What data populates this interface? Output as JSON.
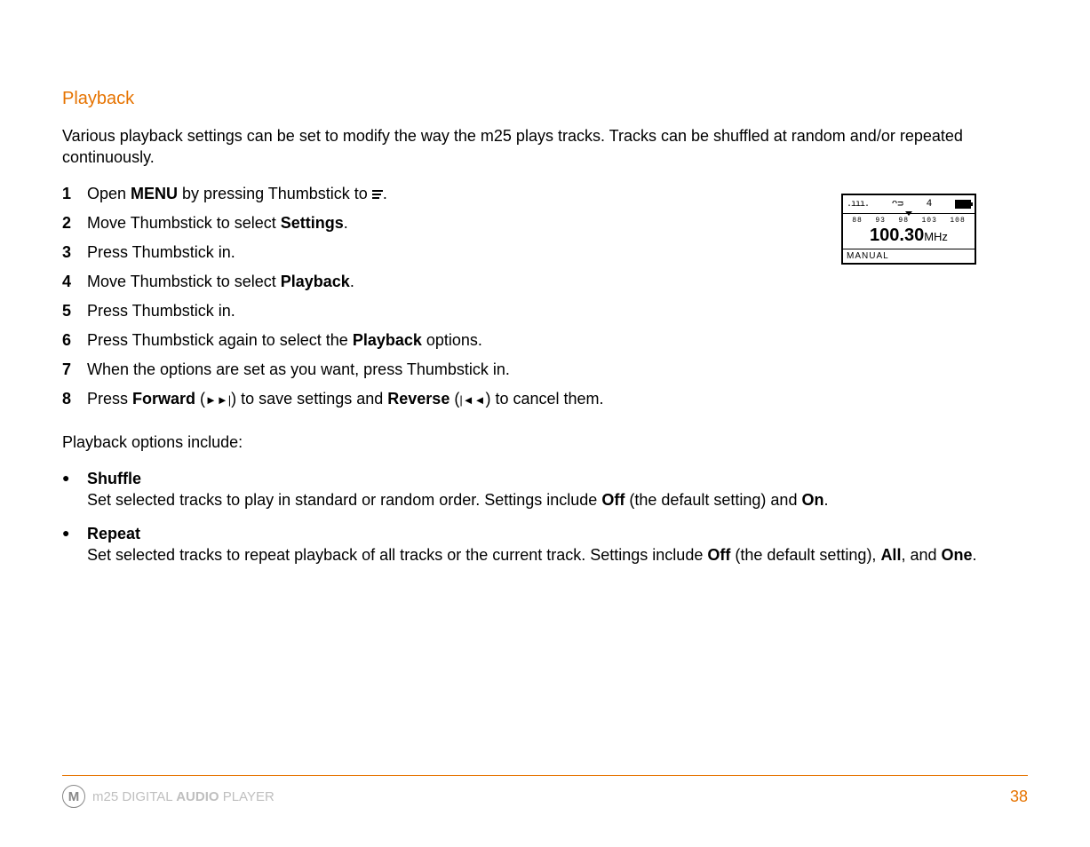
{
  "section": {
    "title": "Playback"
  },
  "intro": "Various playback settings can be set to modify the way the m25 plays tracks. Tracks can be shuffled at random and/or repeated continuously.",
  "steps": [
    {
      "n": "1",
      "pre": "Open ",
      "bold1": "MENU",
      "post1": " by pressing Thumbstick to ",
      "icon": "menu",
      "post2": "."
    },
    {
      "n": "2",
      "pre": "Move Thumbstick to select ",
      "bold1": "Settings",
      "post1": ".",
      "post2": ""
    },
    {
      "n": "3",
      "pre": "Press Thumbstick in.",
      "bold1": "",
      "post1": "",
      "post2": ""
    },
    {
      "n": "4",
      "pre": "Move Thumbstick to select ",
      "bold1": "Playback",
      "post1": ".",
      "post2": ""
    },
    {
      "n": "5",
      "pre": "Press Thumbstick in.",
      "bold1": "",
      "post1": "",
      "post2": ""
    },
    {
      "n": "6",
      "pre": "Press Thumbstick again to select the ",
      "bold1": "Playback",
      "post1": " options.",
      "post2": ""
    },
    {
      "n": "7",
      "pre": "When the options are set as you want, press Thumbstick in.",
      "bold1": "",
      "post1": "",
      "post2": ""
    },
    {
      "n": "8",
      "pre": "Press ",
      "bold1": "Forward",
      "post1": " (",
      "sym1": "►►",
      "sym1bar": "|",
      "mid": ") to save settings and ",
      "bold2": "Reverse",
      "post2": " (",
      "sym2bar": "|",
      "sym2": "◄◄",
      "post3": ") to cancel them."
    }
  ],
  "options_intro": "Playback options include:",
  "options": [
    {
      "title": "Shuffle",
      "desc_pre": "Set selected tracks to play in standard or random order. Settings include ",
      "b1": "Off",
      "mid1": " (the default setting) and ",
      "b2": "On",
      "post": "."
    },
    {
      "title": "Repeat",
      "desc_pre": "Set selected tracks to repeat playback of all tracks or the current track. Settings include ",
      "b1": "Off",
      "mid1": " (the default setting), ",
      "b2": "All",
      "mid2": ", and ",
      "b3": "One",
      "post": "."
    }
  ],
  "device": {
    "signal": ".ııı.",
    "earbud_glyph": "ᴖᴝ",
    "count": "4",
    "ticks": [
      "88",
      "93",
      "98",
      "103",
      "108"
    ],
    "freq": "100.30",
    "unit": "MHz",
    "mode": "MANUAL"
  },
  "footer": {
    "brand_prefix": "m25",
    "brand_mid": " DIGITAL ",
    "brand_bold": "AUDIO",
    "brand_suffix": " PLAYER",
    "page": "38",
    "logo_glyph": "M"
  },
  "colors": {
    "accent": "#e67300",
    "muted": "#bfbfbf",
    "text": "#000000",
    "bg": "#ffffff"
  }
}
